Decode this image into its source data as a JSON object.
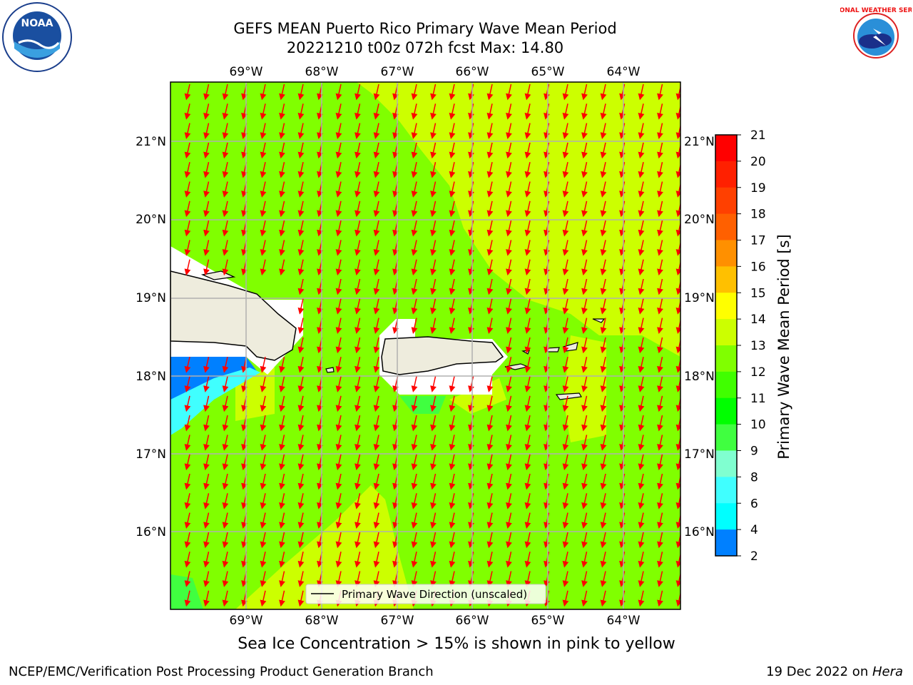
{
  "header": {
    "title_line1": "GEFS MEAN Puerto Rico Primary Wave Mean Period",
    "title_line2": "20221210 t00z 072h fcst   Max: 14.80"
  },
  "logos": {
    "left": {
      "name": "noaa-logo",
      "text": "NOAA"
    },
    "right": {
      "name": "nws-logo",
      "text": "NATIONAL WEATHER SERVICE"
    }
  },
  "map": {
    "lon_labels": [
      "69°W",
      "68°W",
      "67°W",
      "66°W",
      "65°W",
      "64°W"
    ],
    "lat_labels": [
      "21°N",
      "20°N",
      "19°N",
      "18°N",
      "17°N",
      "16°N"
    ],
    "legend_label": "Primary Wave Direction (unscaled)",
    "arrow_color": "#ff0000",
    "field_colors": {
      "green": "#80ff00",
      "yellow_green": "#ccff00",
      "light_green": "#40ff40",
      "blue": "#0080ff",
      "cyan": "#40ffff",
      "land": "#eeecdd"
    }
  },
  "colorbar": {
    "label": "Primary Wave Mean Period [s]",
    "ticks": [
      "21",
      "20",
      "19",
      "18",
      "17",
      "16",
      "15",
      "14",
      "13",
      "12",
      "11",
      "10",
      "9",
      "8",
      "6",
      "4",
      "2"
    ],
    "colors": [
      "#ff0000",
      "#ff2000",
      "#ff4000",
      "#ff6000",
      "#ff9000",
      "#ffc000",
      "#ffff00",
      "#ccff00",
      "#80ff00",
      "#40ff00",
      "#00ff00",
      "#40ff40",
      "#80ffd0",
      "#40ffff",
      "#00ffff",
      "#0080ff",
      "#0000ff"
    ]
  },
  "note": "Sea Ice Concentration > 15% is shown in pink to yellow",
  "footer": {
    "left": "NCEP/EMC/Verification Post Processing Product Generation Branch",
    "right_date": "19 Dec 2022 on ",
    "right_host": "Hera"
  }
}
